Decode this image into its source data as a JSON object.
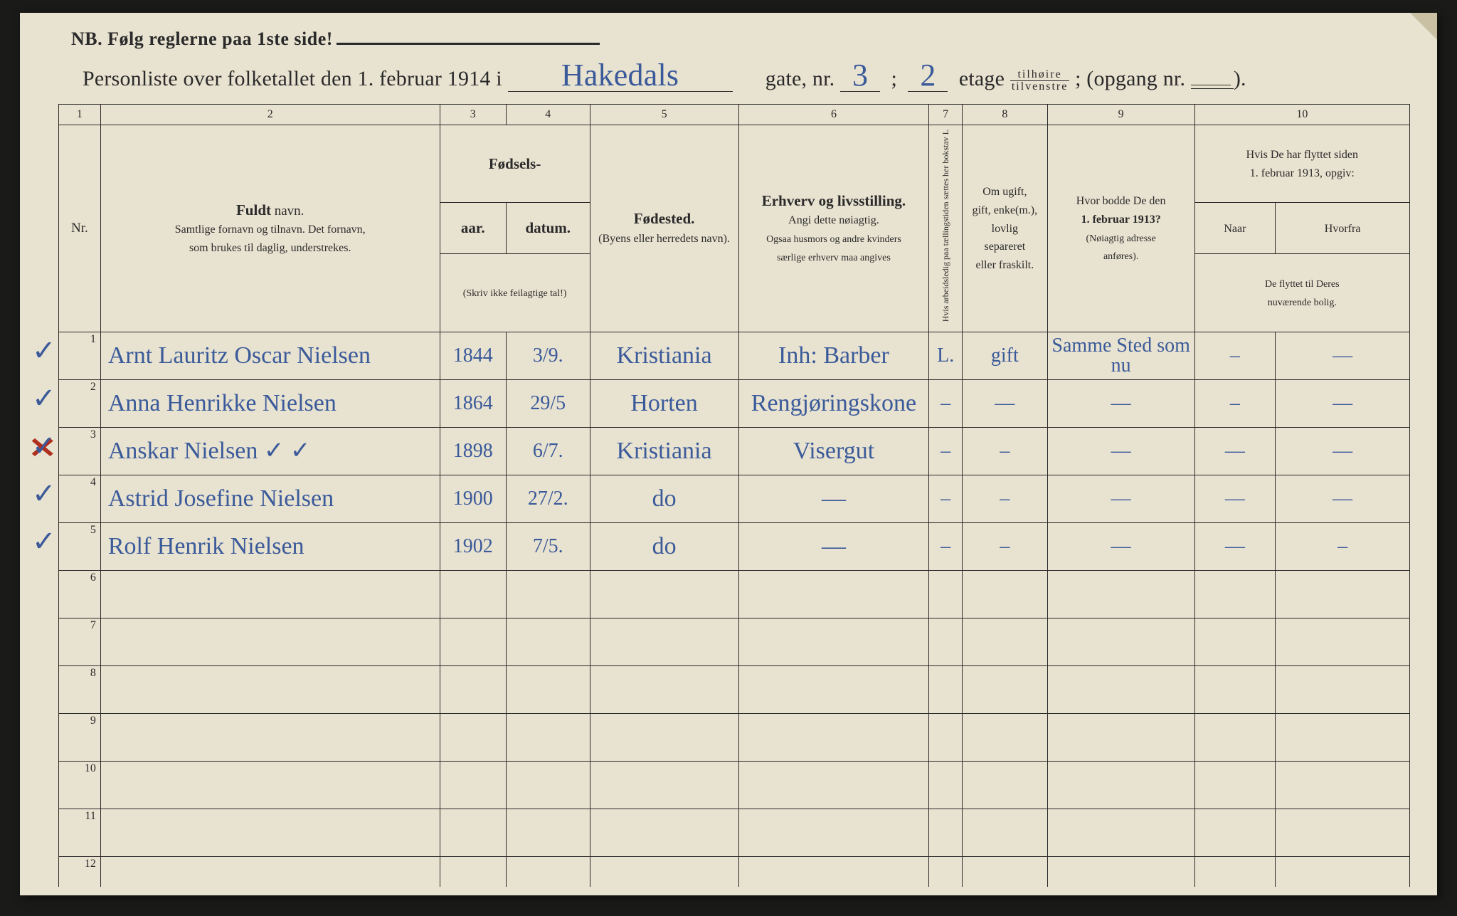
{
  "page": {
    "bg": "#e8e2d0",
    "ink": "#2a2a2a",
    "handwriting_color": "#3a5a9a",
    "red": "#b03020"
  },
  "top_note": "NB.  Følg reglerne paa 1ste side!",
  "header": {
    "prefix": "Personliste over folketallet den 1. februar 1914 i",
    "street_script": "Hakedals",
    "gate_label": "gate, nr.",
    "gate_nr": "3",
    "semicolon": ";",
    "etage_nr": "2",
    "etage_label": "etage",
    "frac_top": "tilhøire",
    "frac_bot": "tilvenstre",
    "opgang": "; (opgang nr.",
    "opgang_nr": "",
    "close": ")."
  },
  "colnums": [
    "1",
    "2",
    "3",
    "4",
    "5",
    "6",
    "7",
    "8",
    "9",
    "10"
  ],
  "heads": {
    "nr": "Nr.",
    "name_title": "Fuldt",
    "name_title2": " navn.",
    "name_sub1": "Samtlige fornavn og tilnavn.  Det fornavn,",
    "name_sub2": "som brukes til daglig, understrekes.",
    "birth_top": "Fødsels-",
    "year": "aar.",
    "date": "datum.",
    "birth_note": "(Skriv ikke feilagtige tal!)",
    "place": "Fødested.",
    "place_sub": "(Byens eller herredets navn).",
    "occ": "Erhverv og livsstilling.",
    "occ_sub1": "Angi dette nøiagtig.",
    "occ_sub2": "Ogsaa husmors og andre kvinders",
    "occ_sub3": "særlige erhverv maa angives",
    "col7": "Hvis arbeidsledig paa tællingstiden sættes her bokstav L",
    "col8a": "Om ugift,",
    "col8b": "gift, enke(m.),",
    "col8c": "lovlig",
    "col8d": "separeret",
    "col8e": "eller fraskilt.",
    "col9a": "Hvor bodde De den",
    "col9b": "1. februar 1913?",
    "col9c": "(Nøiagtig adresse",
    "col9d": "anføres).",
    "col10a": "Hvis De har flyttet siden",
    "col10b": "1. februar 1913, opgiv:",
    "col10c": "Naar",
    "col10d": "Hvorfra",
    "col10e": "De flyttet til Deres",
    "col10f": "nuværende bolig."
  },
  "rows": [
    {
      "nr": "1",
      "chk": "✓",
      "name": "Arnt Lauritz Oscar Nielsen",
      "yr": "1844",
      "dt": "3/9.",
      "place": "Kristiania",
      "occ": "Inh: Barber",
      "un": "L.",
      "mar": "gift",
      "adr": "Samme Sted som nu",
      "when": "–",
      "from": "—"
    },
    {
      "nr": "2",
      "chk": "✓",
      "name": "Anna Henrikke Nielsen",
      "yr": "1864",
      "dt": "29/5",
      "place": "Horten",
      "occ": "Rengjøringskone",
      "un": "–",
      "mar": "—",
      "adr": "—",
      "when": "–",
      "from": "—"
    },
    {
      "nr": "3",
      "chk": "✓",
      "redx": true,
      "name": "Anskar Nielsen        ✓  ✓",
      "yr": "1898",
      "dt": "6/7.",
      "place": "Kristiania",
      "occ": "Visergut",
      "un": "–",
      "mar": "–",
      "adr": "—",
      "when": "—",
      "from": "—"
    },
    {
      "nr": "4",
      "chk": "✓",
      "name": "Astrid Josefine Nielsen",
      "yr": "1900",
      "dt": "27/2.",
      "place": "do",
      "occ": "—",
      "un": "–",
      "mar": "–",
      "adr": "—",
      "when": "—",
      "from": "—"
    },
    {
      "nr": "5",
      "chk": "✓",
      "name": "Rolf Henrik Nielsen",
      "yr": "1902",
      "dt": "7/5.",
      "place": "do",
      "occ": "—",
      "un": "–",
      "mar": "–",
      "adr": "—",
      "when": "—",
      "from": "–"
    }
  ],
  "empty_rows": [
    "6",
    "7",
    "8",
    "9",
    "10",
    "11",
    "12"
  ]
}
